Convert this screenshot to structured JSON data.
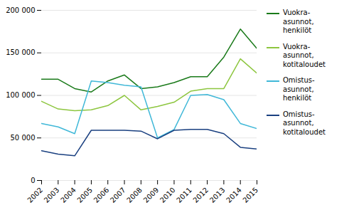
{
  "chart_data": {
    "type": "line",
    "x": [
      2002,
      2003,
      2004,
      2005,
      2006,
      2007,
      2008,
      2009,
      2010,
      2011,
      2012,
      2013,
      2014,
      2015
    ],
    "xlim": [
      2002,
      2015
    ],
    "xticks": [
      2002,
      2003,
      2004,
      2005,
      2006,
      2007,
      2008,
      2009,
      2010,
      2011,
      2012,
      2013,
      2014,
      2015
    ],
    "ylim": [
      0,
      200000
    ],
    "yticks": [
      0,
      {
        "value": 50000,
        "label": "50 000"
      },
      {
        "value": 100000,
        "label": "100 000"
      },
      {
        "value": 150000,
        "label": "150 000"
      },
      {
        "value": 200000,
        "label": "200 000"
      }
    ],
    "grid": "y",
    "series": [
      {
        "name": "Vuokra-\nasunnot,\nhenkilöt",
        "color": "#1a7a1a",
        "values": [
          119000,
          119000,
          108000,
          104000,
          117000,
          124000,
          108000,
          110000,
          115000,
          122000,
          122000,
          145000,
          178000,
          155000
        ]
      },
      {
        "name": "Vuokra-\nasunnot,\nkotitaloudet",
        "color": "#8dc63f",
        "values": [
          93000,
          84000,
          82000,
          83000,
          88000,
          100000,
          83000,
          87000,
          92000,
          105000,
          108000,
          108000,
          143000,
          126000
        ]
      },
      {
        "name": "Omistus-\nasunnot,\nhenkilöt",
        "color": "#40b8d8",
        "values": [
          67000,
          63000,
          55000,
          117000,
          115000,
          112000,
          110000,
          50000,
          60000,
          100000,
          101000,
          95000,
          67000,
          61000
        ]
      },
      {
        "name": "Omistus-\nasunnot,\nkotitaloudet",
        "color": "#1a4080",
        "values": [
          35000,
          31000,
          29000,
          59000,
          59000,
          59000,
          58000,
          49000,
          59000,
          60000,
          60000,
          55000,
          39000,
          37000
        ]
      }
    ]
  }
}
